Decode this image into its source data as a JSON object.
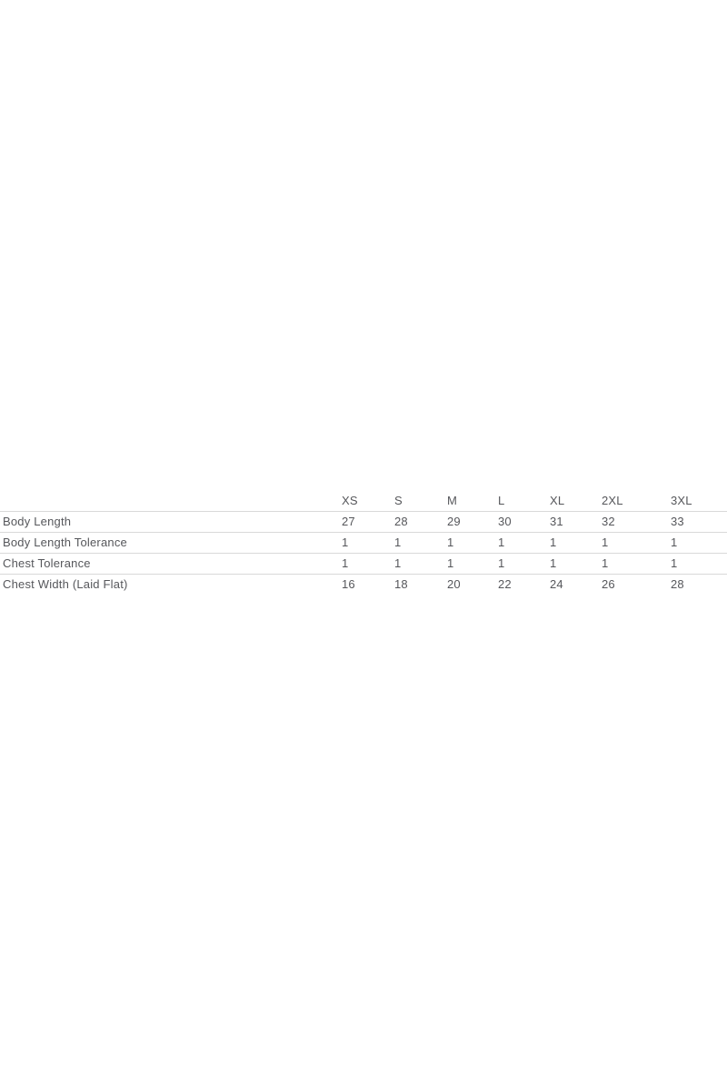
{
  "page": {
    "background": "#ffffff"
  },
  "size_chart": {
    "corner_label": "",
    "columns": [
      "XS",
      "S",
      "M",
      "L",
      "XL",
      "2XL",
      "3XL"
    ],
    "rows": [
      {
        "label": "Body Length",
        "values": [
          "27",
          "28",
          "29",
          "30",
          "31",
          "32",
          "33"
        ]
      },
      {
        "label": "Body Length Tolerance",
        "values": [
          "1",
          "1",
          "1",
          "1",
          "1",
          "1",
          "1"
        ]
      },
      {
        "label": "Chest Tolerance",
        "values": [
          "1",
          "1",
          "1",
          "1",
          "1",
          "1",
          "1"
        ]
      },
      {
        "label": "Chest Width (Laid Flat)",
        "values": [
          "16",
          "18",
          "20",
          "22",
          "24",
          "26",
          "28"
        ]
      }
    ],
    "colors": {
      "text": "#56575b",
      "row_border": "#d9d9d9"
    }
  }
}
